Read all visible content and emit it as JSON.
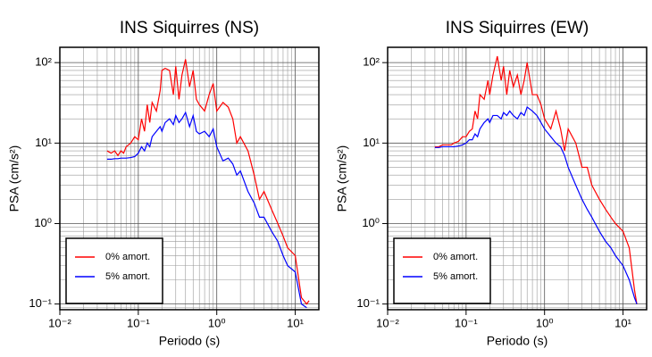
{
  "chart_data": [
    {
      "type": "line",
      "title": "INS Siquirres (NS)",
      "xlabel": "Periodo (s)",
      "ylabel": "PSA (cm/s²)",
      "xscale": "log",
      "yscale": "log",
      "grid": true,
      "legend": "lower left",
      "xlim": [
        0.01,
        20
      ],
      "ylim": [
        0.085,
        155
      ],
      "xticks": [
        {
          "value": 0.01,
          "label": "10⁻²"
        },
        {
          "value": 0.1,
          "label": "10⁻¹"
        },
        {
          "value": 1,
          "label": "10⁰"
        },
        {
          "value": 10,
          "label": "10¹"
        }
      ],
      "yticks": [
        {
          "value": 0.1,
          "label": "10⁻¹"
        },
        {
          "value": 1,
          "label": "10⁰"
        },
        {
          "value": 10,
          "label": "10¹"
        },
        {
          "value": 100,
          "label": "10²"
        }
      ],
      "x": [
        0.04,
        0.045,
        0.05,
        0.055,
        0.06,
        0.065,
        0.07,
        0.08,
        0.09,
        0.1,
        0.11,
        0.12,
        0.13,
        0.14,
        0.15,
        0.17,
        0.19,
        0.2,
        0.22,
        0.25,
        0.28,
        0.3,
        0.33,
        0.36,
        0.4,
        0.45,
        0.5,
        0.55,
        0.6,
        0.7,
        0.8,
        0.9,
        1.0,
        1.2,
        1.4,
        1.6,
        1.8,
        2.0,
        2.5,
        3.0,
        3.5,
        4.0,
        5,
        6,
        7,
        8,
        10,
        12,
        14,
        15
      ],
      "series": [
        {
          "name": "0% amort.",
          "color": "#ff0000",
          "values": [
            8,
            7.5,
            8,
            7,
            8,
            7.5,
            9,
            10,
            12,
            11,
            20,
            14,
            30,
            18,
            32,
            25,
            45,
            80,
            85,
            80,
            40,
            90,
            35,
            70,
            110,
            50,
            80,
            35,
            30,
            25,
            40,
            55,
            25,
            32,
            28,
            20,
            10,
            12,
            8,
            4,
            2,
            2.5,
            1.5,
            1.0,
            0.7,
            0.5,
            0.4,
            0.12,
            0.1,
            0.11
          ]
        },
        {
          "name": "5% amort.",
          "color": "#0000ff",
          "values": [
            6.3,
            6.3,
            6.4,
            6.4,
            6.5,
            6.5,
            6.5,
            6.6,
            6.8,
            7.5,
            9,
            8,
            10,
            9,
            12,
            14,
            16,
            14,
            18,
            20,
            17,
            22,
            18,
            20,
            24,
            16,
            22,
            14,
            13,
            14,
            12,
            15,
            9,
            6,
            6.5,
            5.5,
            4,
            4.5,
            2.5,
            1.8,
            1.2,
            1.2,
            0.8,
            0.6,
            0.4,
            0.3,
            0.25,
            0.1,
            0.09,
            null
          ]
        }
      ]
    },
    {
      "type": "line",
      "title": "INS Siquirres (EW)",
      "xlabel": "Periodo (s)",
      "ylabel": "PSA (cm/s²)",
      "xscale": "log",
      "yscale": "log",
      "grid": true,
      "legend": "lower left",
      "xlim": [
        0.01,
        20
      ],
      "ylim": [
        0.085,
        155
      ],
      "xticks": [
        {
          "value": 0.01,
          "label": "10⁻²"
        },
        {
          "value": 0.1,
          "label": "10⁻¹"
        },
        {
          "value": 1,
          "label": "10⁰"
        },
        {
          "value": 10,
          "label": "10¹"
        }
      ],
      "yticks": [
        {
          "value": 0.1,
          "label": "10⁻¹"
        },
        {
          "value": 1,
          "label": "10⁰"
        },
        {
          "value": 10,
          "label": "10¹"
        },
        {
          "value": 100,
          "label": "10²"
        }
      ],
      "x": [
        0.04,
        0.045,
        0.05,
        0.055,
        0.06,
        0.065,
        0.07,
        0.08,
        0.09,
        0.1,
        0.11,
        0.12,
        0.13,
        0.14,
        0.15,
        0.17,
        0.19,
        0.2,
        0.22,
        0.25,
        0.28,
        0.3,
        0.33,
        0.36,
        0.4,
        0.45,
        0.5,
        0.55,
        0.6,
        0.7,
        0.8,
        0.9,
        1.0,
        1.2,
        1.4,
        1.6,
        1.8,
        2.0,
        2.5,
        3.0,
        3.5,
        4.0,
        5,
        6,
        7,
        8,
        10,
        12,
        14,
        15
      ],
      "series": [
        {
          "name": "0% amort.",
          "color": "#ff0000",
          "values": [
            9,
            9,
            9.5,
            9.5,
            9.5,
            9.5,
            10,
            10.5,
            12,
            12,
            14,
            15,
            25,
            20,
            40,
            35,
            60,
            40,
            70,
            120,
            60,
            90,
            40,
            80,
            50,
            70,
            40,
            60,
            100,
            40,
            40,
            30,
            20,
            15,
            25,
            15,
            8,
            15,
            10,
            5,
            5,
            3,
            2,
            1.5,
            1.2,
            1.0,
            0.8,
            0.5,
            0.15,
            0.1
          ]
        },
        {
          "name": "5% amort.",
          "color": "#0000ff",
          "values": [
            8.8,
            8.8,
            9,
            9,
            9,
            9,
            9,
            9.2,
            9.5,
            10,
            11,
            11,
            13,
            12,
            15,
            18,
            20,
            18,
            22,
            22,
            20,
            24,
            22,
            25,
            22,
            20,
            24,
            22,
            28,
            25,
            22,
            18,
            15,
            12,
            10,
            9,
            7,
            5,
            3,
            2,
            1.5,
            1.2,
            0.8,
            0.6,
            0.5,
            0.4,
            0.3,
            0.2,
            0.12,
            0.1
          ]
        }
      ]
    }
  ]
}
